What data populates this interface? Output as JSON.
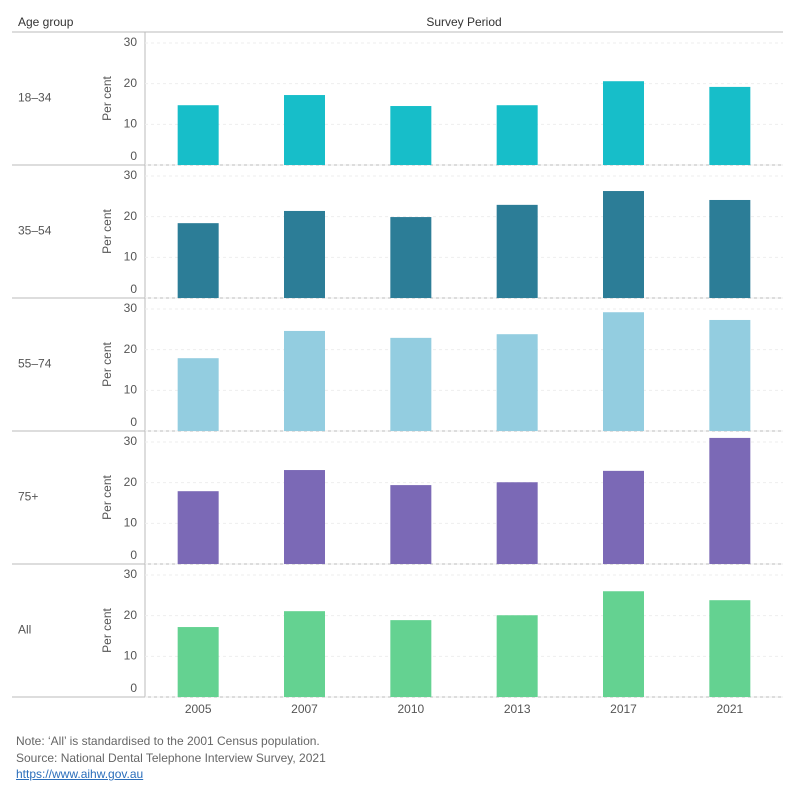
{
  "header": {
    "row_title": "Age group",
    "column_title": "Survey Period"
  },
  "chart_data": [
    {
      "type": "bar",
      "row_label": "18–34",
      "ylabel": "Per cent",
      "color": "#17bec9",
      "values": [
        14.7,
        17.2,
        14.5,
        14.7,
        20.6,
        19.2
      ],
      "ylim": [
        0,
        32.7
      ],
      "yticks": [
        0,
        10,
        20,
        30
      ],
      "grid": true
    },
    {
      "type": "bar",
      "row_label": "35–54",
      "ylabel": "Per cent",
      "color": "#2c7d97",
      "values": [
        18.4,
        21.4,
        19.9,
        22.9,
        26.3,
        24.1
      ],
      "ylim": [
        0,
        32.7
      ],
      "yticks": [
        0,
        10,
        20,
        30
      ],
      "grid": true
    },
    {
      "type": "bar",
      "row_label": "55–74",
      "ylabel": "Per cent",
      "color": "#93cde0",
      "values": [
        17.9,
        24.6,
        22.9,
        23.8,
        29.2,
        27.3
      ],
      "ylim": [
        0,
        32.7
      ],
      "yticks": [
        0,
        10,
        20,
        30
      ],
      "grid": true
    },
    {
      "type": "bar",
      "row_label": "75+",
      "ylabel": "Per cent",
      "color": "#7b69b6",
      "values": [
        17.9,
        23.1,
        19.4,
        20.1,
        22.9,
        31.0
      ],
      "ylim": [
        0,
        32.7
      ],
      "yticks": [
        0,
        10,
        20,
        30
      ],
      "grid": true
    },
    {
      "type": "bar",
      "row_label": "All",
      "ylabel": "Per cent",
      "color": "#64d291",
      "categories": [
        "2005",
        "2007",
        "2010",
        "2013",
        "2017",
        "2021"
      ],
      "values": [
        17.2,
        21.1,
        18.9,
        20.1,
        26.0,
        23.8
      ],
      "ylim": [
        0,
        32.7
      ],
      "yticks": [
        0,
        10,
        20,
        30
      ],
      "grid": true
    }
  ],
  "notes": [
    "Note: ‘All’ is standardised to the 2001 Census population.",
    "Source: National Dental Telephone Interview Survey, 2021"
  ],
  "link": "https://www.aihw.gov.au"
}
